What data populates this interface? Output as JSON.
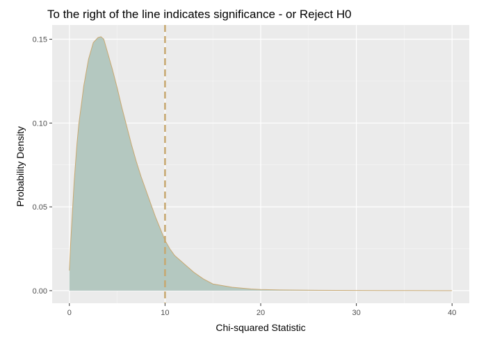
{
  "chart_data": {
    "type": "area",
    "title": "To the right of the line indicates significance - or Reject H0",
    "xlabel": "Chi-squared Statistic",
    "ylabel": "Probability Density",
    "xlim": [
      -1.8,
      41.8
    ],
    "ylim": [
      -0.0075,
      0.1585
    ],
    "x_ticks": [
      0,
      10,
      20,
      30,
      40
    ],
    "y_ticks": [
      0.0,
      0.05,
      0.1,
      0.15
    ],
    "x_tick_labels": [
      "0",
      "10",
      "20",
      "30",
      "40"
    ],
    "y_tick_labels": [
      "0.00",
      "0.05",
      "0.10",
      "0.15"
    ],
    "grid": true,
    "background_color": "#ebebeb",
    "fill_color": "#b4c8c0",
    "line_color": "#c8a870",
    "vline": {
      "x": 10,
      "style": "dashed",
      "color": "#c8a870"
    },
    "series": [
      {
        "x": [
          0,
          0.1,
          0.3,
          0.5,
          0.8,
          1.0,
          1.3,
          1.5,
          2.0,
          2.5,
          3.0,
          3.3,
          3.6,
          4.0,
          4.5,
          5.0,
          5.5,
          6.0,
          6.5,
          7.0,
          7.5,
          8.0,
          8.5,
          9.0,
          9.5,
          10.0,
          10.5,
          11.0,
          12.0,
          13.0,
          14.0,
          15.0,
          16.0,
          17.0,
          18.0,
          19.0,
          20.0,
          22.0,
          24.0,
          26.0,
          28.0,
          30.0,
          33.0,
          36.0,
          40.0
        ],
        "y": [
          0.012,
          0.025,
          0.045,
          0.065,
          0.088,
          0.1,
          0.113,
          0.122,
          0.138,
          0.148,
          0.151,
          0.1515,
          0.15,
          0.142,
          0.132,
          0.121,
          0.109,
          0.098,
          0.087,
          0.077,
          0.068,
          0.06,
          0.052,
          0.044,
          0.037,
          0.03,
          0.025,
          0.021,
          0.016,
          0.011,
          0.007,
          0.004,
          0.003,
          0.002,
          0.0015,
          0.001,
          0.0007,
          0.0004,
          0.0003,
          0.0002,
          0.00015,
          0.0001,
          5e-05,
          3e-05,
          0.0
        ]
      }
    ]
  }
}
